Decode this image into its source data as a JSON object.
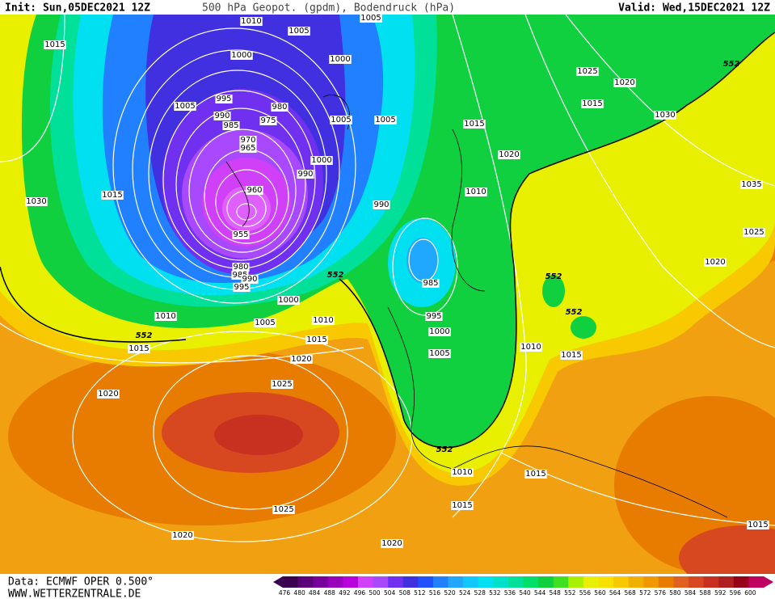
{
  "header": {
    "init": "Init: Sun,05DEC2021 12Z",
    "title": "500 hPa Geopot. (gpdm), Bodendruck (hPa)",
    "valid": "Valid: Wed,15DEC2021 12Z"
  },
  "footer": {
    "source": "Data: ECMWF OPER 0.500°",
    "site": "WWW.WETTERZENTRALE.DE"
  },
  "isobar_labels": [
    1015,
    1010,
    1005,
    1005,
    1000,
    1000,
    1025,
    1020,
    1015,
    1005,
    995,
    980,
    990,
    985,
    975,
    1005,
    1005,
    1015,
    1030,
    970,
    965,
    1020,
    1000,
    990,
    1035,
    1015,
    1030,
    960,
    1010,
    990,
    1025,
    955,
    1020,
    980,
    985,
    990,
    995,
    985,
    1000,
    1010,
    1010,
    1005,
    995,
    1000,
    1015,
    1015,
    1010,
    1015,
    1005,
    1020,
    1025,
    1020,
    1010,
    1015,
    1015,
    1025,
    1020,
    1020,
    1015
  ],
  "geopotential_labels": [
    552,
    552,
    552,
    552,
    552,
    552
  ],
  "scale": {
    "values": [
      476,
      480,
      484,
      488,
      492,
      496,
      500,
      504,
      508,
      512,
      516,
      520,
      524,
      528,
      532,
      536,
      540,
      544,
      548,
      552,
      556,
      560,
      564,
      568,
      572,
      576,
      580,
      584,
      588,
      592,
      596,
      600
    ],
    "colors": [
      "#3c0050",
      "#5a0078",
      "#78009a",
      "#9800bc",
      "#b800dc",
      "#d040f8",
      "#a848ff",
      "#7030f0",
      "#4030e0",
      "#2050ff",
      "#2080ff",
      "#20a8ff",
      "#10c8ff",
      "#00e0f0",
      "#00e0c8",
      "#00e098",
      "#00e068",
      "#10d040",
      "#40e020",
      "#a8f000",
      "#e8f000",
      "#f8e000",
      "#f8c800",
      "#f0b000",
      "#f09800",
      "#e87c00",
      "#e06020",
      "#d84820",
      "#c83020",
      "#b02020",
      "#980018",
      "#c00060"
    ]
  }
}
